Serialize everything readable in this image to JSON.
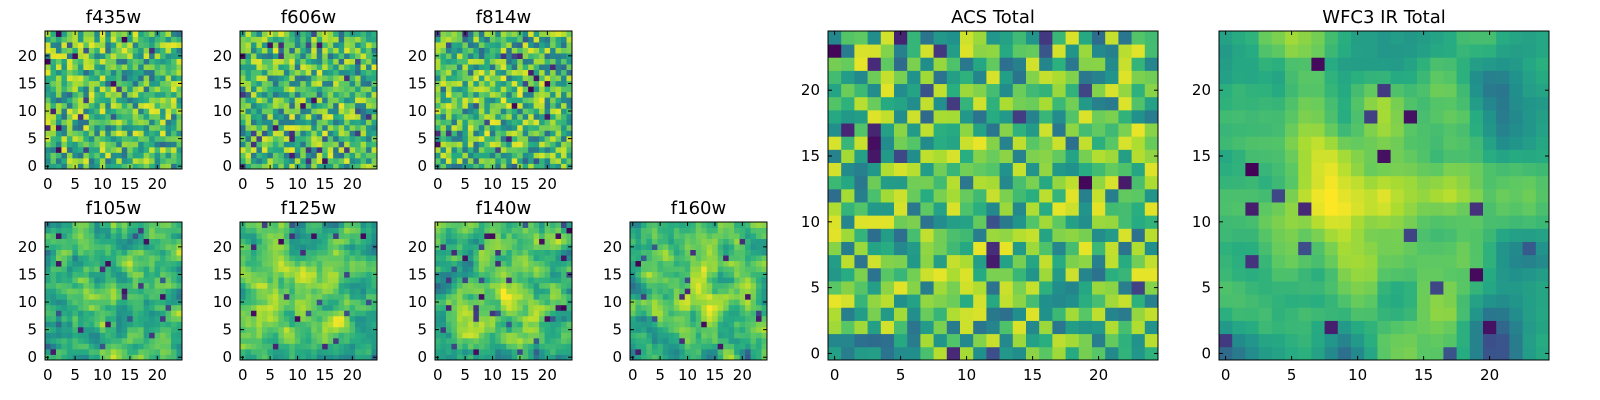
{
  "figure": {
    "colormap": "viridis",
    "background": "#ffffff"
  },
  "chart_data": [
    {
      "type": "heatmap",
      "title": "f435w",
      "grid_size": 25,
      "xlim": [
        -0.5,
        24.5
      ],
      "ylim": [
        -0.5,
        24.5
      ],
      "xticks": [
        0,
        5,
        10,
        15,
        20
      ],
      "yticks": [
        0,
        5,
        10,
        15,
        20
      ],
      "grid": false,
      "seed": 11,
      "smooth": 0,
      "center_boost": 0.0,
      "value_range": [
        0,
        1
      ]
    },
    {
      "type": "heatmap",
      "title": "f606w",
      "grid_size": 25,
      "xlim": [
        -0.5,
        24.5
      ],
      "ylim": [
        -0.5,
        24.5
      ],
      "xticks": [
        0,
        5,
        10,
        15,
        20
      ],
      "yticks": [
        0,
        5,
        10,
        15,
        20
      ],
      "grid": false,
      "seed": 23,
      "smooth": 0,
      "center_boost": 0.0,
      "value_range": [
        0,
        1
      ]
    },
    {
      "type": "heatmap",
      "title": "f814w",
      "grid_size": 25,
      "xlim": [
        -0.5,
        24.5
      ],
      "ylim": [
        -0.5,
        24.5
      ],
      "xticks": [
        0,
        5,
        10,
        15,
        20
      ],
      "yticks": [
        0,
        5,
        10,
        15,
        20
      ],
      "grid": false,
      "seed": 37,
      "smooth": 0,
      "center_boost": 0.05,
      "value_range": [
        0,
        1
      ]
    },
    {
      "type": "heatmap",
      "title": "f105w",
      "grid_size": 25,
      "xlim": [
        -0.5,
        24.5
      ],
      "ylim": [
        -0.5,
        24.5
      ],
      "xticks": [
        0,
        5,
        10,
        15,
        20
      ],
      "yticks": [
        0,
        5,
        10,
        15,
        20
      ],
      "grid": false,
      "seed": 41,
      "smooth": 1,
      "center_boost": 0.1,
      "value_range": [
        0,
        1
      ]
    },
    {
      "type": "heatmap",
      "title": "f125w",
      "grid_size": 25,
      "xlim": [
        -0.5,
        24.5
      ],
      "ylim": [
        -0.5,
        24.5
      ],
      "xticks": [
        0,
        5,
        10,
        15,
        20
      ],
      "yticks": [
        0,
        5,
        10,
        15,
        20
      ],
      "grid": false,
      "seed": 53,
      "smooth": 1,
      "center_boost": 0.1,
      "value_range": [
        0,
        1
      ]
    },
    {
      "type": "heatmap",
      "title": "f140w",
      "grid_size": 25,
      "xlim": [
        -0.5,
        24.5
      ],
      "ylim": [
        -0.5,
        24.5
      ],
      "xticks": [
        0,
        5,
        10,
        15,
        20
      ],
      "yticks": [
        0,
        5,
        10,
        15,
        20
      ],
      "grid": false,
      "seed": 67,
      "smooth": 1,
      "center_boost": 0.15,
      "value_range": [
        0,
        1
      ]
    },
    {
      "type": "heatmap",
      "title": "f160w",
      "grid_size": 25,
      "xlim": [
        -0.5,
        24.5
      ],
      "ylim": [
        -0.5,
        24.5
      ],
      "xticks": [
        0,
        5,
        10,
        15,
        20
      ],
      "yticks": [
        0,
        5,
        10,
        15,
        20
      ],
      "grid": false,
      "seed": 79,
      "smooth": 1,
      "center_boost": 0.25,
      "value_range": [
        0,
        1
      ]
    },
    {
      "type": "heatmap",
      "title": "ACS Total",
      "grid_size": 25,
      "xlim": [
        -0.5,
        24.5
      ],
      "ylim": [
        -0.5,
        24.5
      ],
      "xticks": [
        0,
        5,
        10,
        15,
        20
      ],
      "yticks": [
        0,
        5,
        10,
        15,
        20
      ],
      "grid": false,
      "seed": 97,
      "smooth": 0,
      "center_boost": 0.0,
      "value_range": [
        0,
        1
      ]
    },
    {
      "type": "heatmap",
      "title": "WFC3 IR Total",
      "grid_size": 25,
      "xlim": [
        -0.5,
        24.5
      ],
      "ylim": [
        -0.5,
        24.5
      ],
      "xticks": [
        0,
        5,
        10,
        15,
        20
      ],
      "yticks": [
        0,
        5,
        10,
        15,
        20
      ],
      "grid": false,
      "seed": 131,
      "smooth": 2,
      "center_boost": 0.35,
      "value_range": [
        0,
        1
      ]
    }
  ]
}
